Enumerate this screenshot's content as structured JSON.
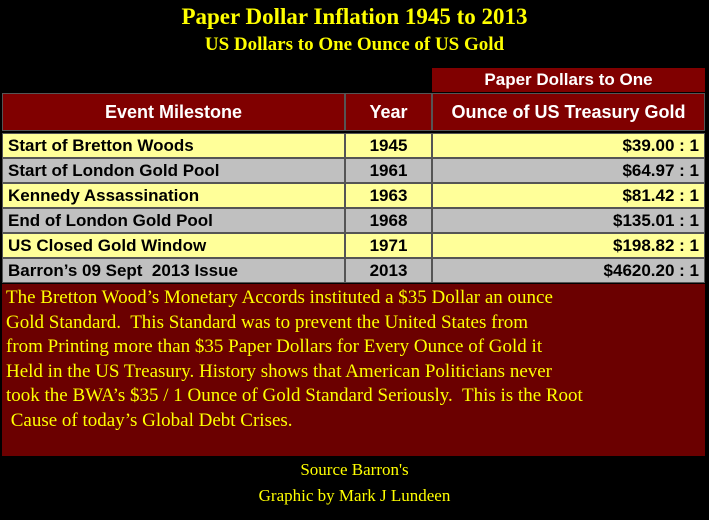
{
  "header": {
    "title": "Paper Dollar Inflation 1945 to 2013",
    "subtitle": "US Dollars to One Ounce of US Gold"
  },
  "table": {
    "group_header": "Paper Dollars to One",
    "columns": [
      "Event Milestone",
      "Year",
      "Ounce of US Treasury Gold"
    ],
    "rows": [
      [
        "Start of Bretton Woods",
        1945,
        "$39.00 : 1"
      ],
      [
        "Start of London Gold Pool",
        1961,
        "$64.97 : 1"
      ],
      [
        "Kennedy Assassination",
        1963,
        "$81.42 : 1"
      ],
      [
        "End of London Gold Pool",
        1968,
        "$135.01 : 1"
      ],
      [
        "US Closed Gold Window",
        1971,
        "$198.82 : 1"
      ],
      [
        "Barron’s 09 Sept  2013 Issue",
        2013,
        "$4620.20 : 1"
      ]
    ]
  },
  "note": {
    "lines": [
      "The Bretton Wood’s Monetary Accords instituted a $35 Dollar an ounce",
      "Gold Standard.  This Standard was to prevent the United States from",
      "from Printing more than $35 Paper Dollars for Every Ounce of Gold it",
      "Held in the US Treasury. History shows that American Politicians never",
      "took the BWA’s $35 / 1 Ounce of Gold Standard Seriously.  This is the Root",
      " Cause of today’s Global Debt Crises."
    ]
  },
  "footer": {
    "source": "Source Barron's",
    "credit": "Graphic by Mark J Lundeen"
  }
}
